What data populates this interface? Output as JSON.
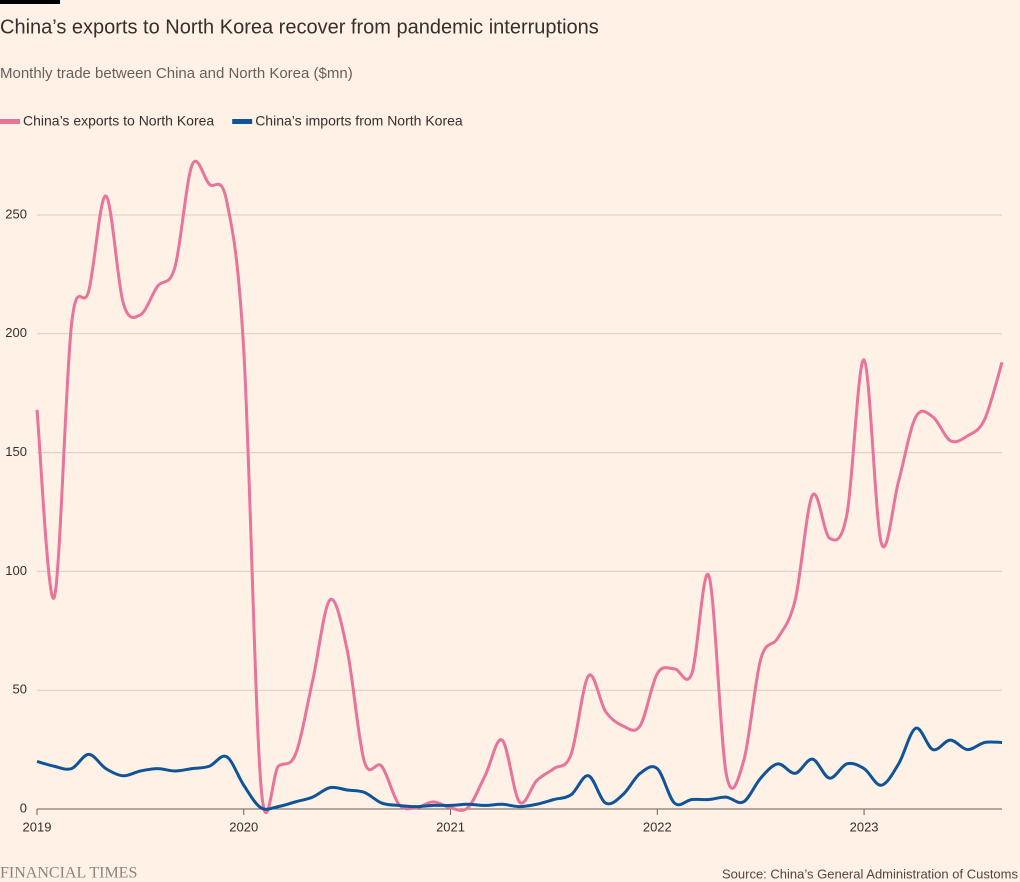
{
  "chart_data": {
    "type": "line",
    "title": "China’s exports to North Korea recover from pandemic interruptions",
    "subtitle": "Monthly trade between China and North Korea ($mn)",
    "source": "Source: China’s General Administration of Customs",
    "brand": "FINANCIAL TIMES",
    "x": [
      2019,
      2019.083,
      2019.167,
      2019.25,
      2019.333,
      2019.417,
      2019.5,
      2019.583,
      2019.667,
      2019.75,
      2019.833,
      2019.917,
      2020,
      2020.083,
      2020.167,
      2020.25,
      2020.333,
      2020.417,
      2020.5,
      2020.583,
      2020.667,
      2020.75,
      2020.833,
      2020.917,
      2021,
      2021.083,
      2021.167,
      2021.25,
      2021.333,
      2021.417,
      2021.5,
      2021.583,
      2021.667,
      2021.75,
      2021.833,
      2021.917,
      2022,
      2022.083,
      2022.167,
      2022.25,
      2022.333,
      2022.417,
      2022.5,
      2022.583,
      2022.667,
      2022.75,
      2022.833,
      2022.917,
      2023,
      2023.083,
      2023.167,
      2023.25,
      2023.333,
      2023.417,
      2023.5,
      2023.583,
      2023.667
    ],
    "series": [
      {
        "name": "China’s exports to North Korea",
        "color": "#e8739b",
        "values": [
          168,
          89,
          204,
          218,
          258,
          213,
          208,
          220,
          228,
          271,
          263,
          256,
          193,
          10,
          18,
          23,
          54,
          88,
          67,
          20,
          18,
          2,
          0.5,
          3,
          0.5,
          0.5,
          14,
          29,
          3,
          12,
          17,
          23,
          56,
          41,
          35,
          35,
          57,
          59,
          57,
          98,
          15,
          20,
          63,
          72,
          88,
          132,
          114,
          124,
          189,
          112,
          138,
          165,
          165,
          155,
          157,
          164,
          188
        ]
      },
      {
        "name": "China’s imports from North Korea",
        "color": "#0f5499",
        "values": [
          20,
          18,
          17,
          23,
          17,
          14,
          16,
          17,
          16,
          17,
          18,
          22,
          10,
          0.5,
          1,
          3,
          5,
          9,
          8,
          7,
          2.5,
          1.5,
          1,
          1.5,
          1.5,
          2,
          1.5,
          2,
          1,
          2,
          4,
          6,
          14,
          2.5,
          6,
          15,
          17,
          2.5,
          4,
          4,
          5,
          3,
          13,
          19,
          15,
          21,
          13,
          19,
          17,
          10,
          19,
          34,
          25,
          29,
          25,
          28,
          28
        ]
      }
    ],
    "xlim": [
      2019,
      2023.667
    ],
    "xticks": [
      2019,
      2020,
      2021,
      2022,
      2023
    ],
    "ylim": [
      0,
      270
    ],
    "yticks": [
      0,
      50,
      100,
      150,
      200,
      250
    ],
    "grid": true
  }
}
